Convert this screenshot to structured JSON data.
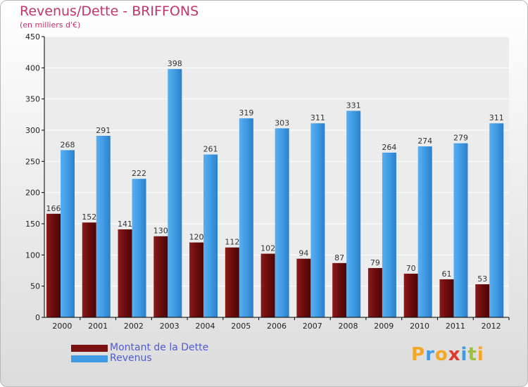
{
  "header": {
    "title": "Revenus/Dette - BRIFFONS",
    "subtitle": "(en milliers d'€)"
  },
  "legend": [
    {
      "label": "Montant de la Dette",
      "color": "#7a1010"
    },
    {
      "label": "Revenus",
      "color": "#3f9be3"
    }
  ],
  "logo": {
    "letters": [
      {
        "ch": "P",
        "color": "#f5a623"
      },
      {
        "ch": "r",
        "color": "#3f9be3"
      },
      {
        "ch": "o",
        "color": "#f5a623"
      },
      {
        "ch": "x",
        "color": "#e03a2e"
      },
      {
        "ch": "i",
        "color": "#3f9be3"
      },
      {
        "ch": "t",
        "color": "#9bc23a"
      },
      {
        "ch": "i",
        "color": "#f5a623"
      }
    ]
  },
  "chart_data": {
    "type": "bar",
    "categories": [
      "2000",
      "2001",
      "2002",
      "2003",
      "2004",
      "2005",
      "2006",
      "2007",
      "2008",
      "2009",
      "2010",
      "2011",
      "2012"
    ],
    "series": [
      {
        "name": "Montant de la Dette",
        "color": "#7a1010",
        "values": [
          166,
          152,
          141,
          130,
          120,
          112,
          102,
          94,
          87,
          79,
          70,
          61,
          53
        ]
      },
      {
        "name": "Revenus",
        "color": "#3f9be3",
        "values": [
          268,
          291,
          222,
          398,
          261,
          319,
          303,
          311,
          331,
          264,
          274,
          279,
          311
        ]
      }
    ],
    "ylim": [
      0,
      450
    ],
    "yticks": [
      0,
      50,
      100,
      150,
      200,
      250,
      300,
      350,
      400,
      450
    ],
    "grid": true
  }
}
